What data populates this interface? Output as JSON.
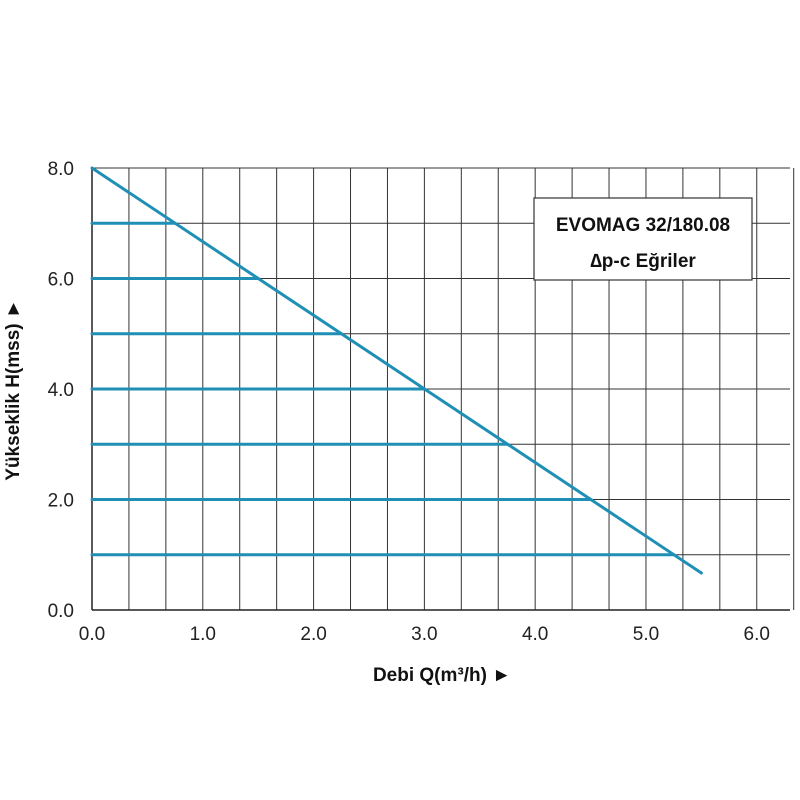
{
  "chart_data": {
    "type": "line",
    "xlabel": "Debi Q(m³/h) ►",
    "ylabel": "Yükseklik H(mss) ►",
    "xlim": [
      0,
      6.3
    ],
    "ylim": [
      0,
      8
    ],
    "x_ticks": [
      "0.0",
      "1.0",
      "2.0",
      "3.0",
      "4.0",
      "5.0",
      "6.0"
    ],
    "y_ticks": [
      "0.0",
      "2.0",
      "4.0",
      "6.0",
      "8.0"
    ],
    "grid": true,
    "legend": {
      "title": "EVOMAG 32/180.08",
      "subtitle": "∆p-c Eğriler",
      "position": "top-right"
    },
    "colors": {
      "curve": "#1f8fb5",
      "grid": "#333333"
    },
    "series": [
      {
        "x": [
          0,
          5.5
        ],
        "y": [
          8,
          0.67
        ]
      },
      {
        "x": [
          0,
          0.75
        ],
        "y": [
          7,
          7
        ]
      },
      {
        "x": [
          0,
          1.5
        ],
        "y": [
          6,
          6
        ]
      },
      {
        "x": [
          0,
          2.25
        ],
        "y": [
          5,
          5
        ]
      },
      {
        "x": [
          0,
          3.0
        ],
        "y": [
          4,
          4
        ]
      },
      {
        "x": [
          0,
          3.75
        ],
        "y": [
          3,
          3
        ]
      },
      {
        "x": [
          0,
          4.5
        ],
        "y": [
          2,
          2
        ]
      },
      {
        "x": [
          0,
          5.25
        ],
        "y": [
          1,
          1
        ]
      }
    ]
  }
}
